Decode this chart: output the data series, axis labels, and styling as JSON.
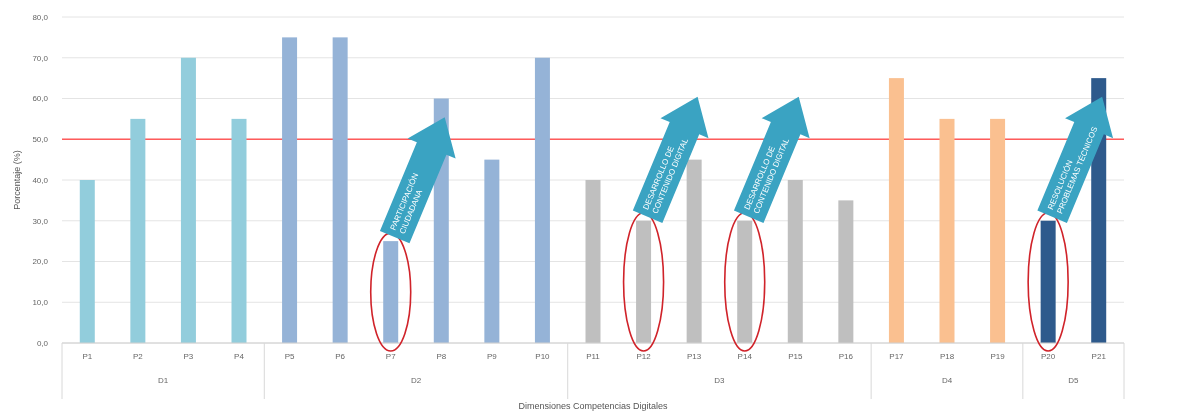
{
  "chart_data": {
    "type": "bar",
    "xlabel": "Dimensiones Competencias Digitales",
    "ylabel": "Porcentaje (%)",
    "categories": [
      "P1",
      "P2",
      "P3",
      "P4",
      "P5",
      "P6",
      "P7",
      "P8",
      "P9",
      "P10",
      "P11",
      "P12",
      "P13",
      "P14",
      "P15",
      "P16",
      "P17",
      "P18",
      "P19",
      "P20",
      "P21"
    ],
    "values": [
      40,
      55,
      70,
      55,
      75,
      75,
      25,
      60,
      45,
      70,
      40,
      30,
      45,
      30,
      40,
      35,
      65,
      55,
      55,
      30,
      65
    ],
    "colors": [
      "#92cddc",
      "#92cddc",
      "#92cddc",
      "#92cddc",
      "#95b3d7",
      "#95b3d7",
      "#95b3d7",
      "#95b3d7",
      "#95b3d7",
      "#95b3d7",
      "#bfbfbf",
      "#bfbfbf",
      "#bfbfbf",
      "#bfbfbf",
      "#bfbfbf",
      "#bfbfbf",
      "#fac090",
      "#fac090",
      "#fac090",
      "#2e5a8c",
      "#2e5a8c"
    ],
    "ylim": [
      0,
      80
    ],
    "yticks": [
      {
        "value": 0,
        "label": "0,0"
      },
      {
        "value": 10,
        "label": "10,0"
      },
      {
        "value": 20,
        "label": "20,0"
      },
      {
        "value": 30,
        "label": "30,0"
      },
      {
        "value": 40,
        "label": "40,0"
      },
      {
        "value": 50,
        "label": "50,0"
      },
      {
        "value": 60,
        "label": "60,0"
      },
      {
        "value": 70,
        "label": "70,0"
      },
      {
        "value": 80,
        "label": "80,0"
      }
    ],
    "grid": "y",
    "ref_lines": [
      {
        "axis": "y",
        "value": 50,
        "color": "#ff5b5b"
      }
    ],
    "annotations": [
      "D1",
      "D2",
      "D3",
      "D4",
      "D5",
      {
        "text": "PARTICIPACIÓN CIUDADANA",
        "x": "P7",
        "y": 25
      },
      {
        "text": "DESARROLLO DE CONTENIDO DIGITAL",
        "x": "P12",
        "y": 30
      },
      {
        "text": "DESARROLLO DE CONTENIDO DIGITAL",
        "x": "P14",
        "y": 30
      },
      {
        "text": "RESOLUCIÓN PROBLEMAS TÉCNICOS",
        "x": "P20",
        "y": 30
      }
    ]
  }
}
